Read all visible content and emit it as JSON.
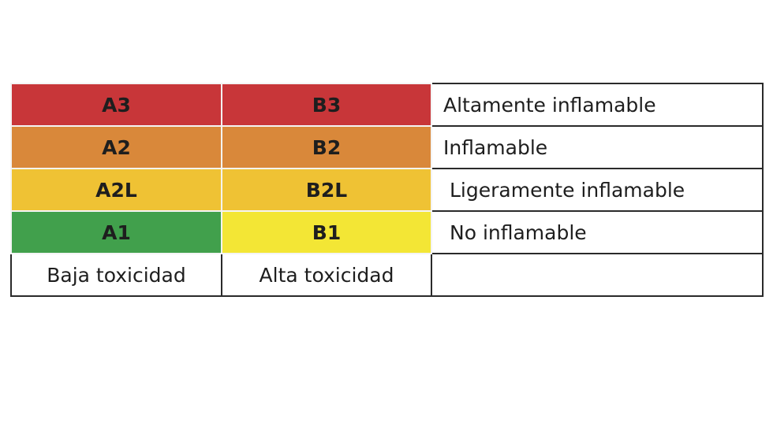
{
  "table": {
    "rows": [
      [
        "A3",
        "B3",
        "Altamente inflamable"
      ],
      [
        "A2",
        "B2",
        "Inflamable"
      ],
      [
        "A2L",
        "B2L",
        "Ligeramente inflamable"
      ],
      [
        "A1",
        "B1",
        "No inflamable"
      ],
      [
        "Baja toxicidad",
        "Alta toxicidad"
      ]
    ]
  }
}
